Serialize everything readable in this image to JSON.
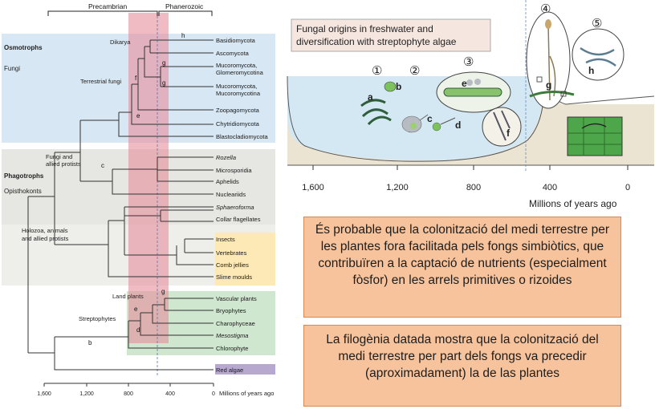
{
  "tree": {
    "era_precambrian": "Precambrian",
    "era_phanerozoic": "Phanerozoic",
    "group_osmotrophs": "Osmotrophs",
    "group_fungi": "Fungi",
    "group_phagotrophs": "Phagotrophs",
    "group_opisthokonts": "Opisthokonts",
    "clade_dikarya": "Dikarya",
    "clade_terrestrial_fungi": "Terrestrial fungi",
    "clade_fungi_allied_1": "Fungi and",
    "clade_fungi_allied_2": "allied protists",
    "clade_holozoa_1": "Holozoa, animals",
    "clade_holozoa_2": "and allied protists",
    "clade_land_plants": "Land plants",
    "clade_streptophytes": "Streptophytes",
    "markers": {
      "h": "h",
      "g1": "g",
      "g2": "g",
      "f": "f",
      "e1": "e",
      "c": "c",
      "g3": "g",
      "e2": "e",
      "d": "d",
      "b": "b"
    },
    "taxa": {
      "basidiomycota": "Basidiomycota",
      "ascomycota": "Ascomycota",
      "mucoromycota_glomero_1": "Mucoromycota,",
      "mucoromycota_glomero_2": "Glomeromycotina",
      "mucoromycota_mucoro_1": "Mucoromycota,",
      "mucoromycota_mucoro_2": "Mucoromycotina",
      "zoopagomycota": "Zoopagomycota",
      "chytridiomycota": "Chytridiomycota",
      "blastocladiomycota": "Blastocladiomycota",
      "rozella": "Rozella",
      "microsporidia": "Microsporidia",
      "aphelids": "Aphelids",
      "nucleariids": "Nucleariids",
      "sphaeroforma": "Sphaeroforma",
      "collar_flagellates": "Collar flagellates",
      "insects": "Insects",
      "vertebrates": "Vertebrates",
      "comb_jellies": "Comb jellies",
      "slime_moulds": "Slime moulds",
      "vascular_plants": "Vascular plants",
      "bryophytes": "Bryophytes",
      "charophyceae": "Charophyceae",
      "mesostigma": "Mesostigma",
      "chlorophyte": "Chlorophyte",
      "red_algae": "Red algae"
    },
    "axis_ticks": [
      "1,600",
      "1,200",
      "800",
      "400",
      "0"
    ],
    "axis_label": "Millions of years ago"
  },
  "scene": {
    "title_line1": "Fungal origins in freshwater and",
    "title_line2": "diversification with streptophyte algae",
    "circle_numbers": [
      "①",
      "②",
      "③",
      "④",
      "⑤"
    ],
    "letters": {
      "a": "a",
      "b": "b",
      "c": "c",
      "d": "d",
      "e": "e",
      "f": "f",
      "g": "g",
      "h": "h"
    },
    "axis_ticks": [
      "1,600",
      "1,200",
      "800",
      "400",
      "0"
    ],
    "axis_label": "Millions of years ago"
  },
  "text_box_1": "És probable que la colonització del medi terrestre per les plantes fora facilitada pels fongs simbiòtics, que contribuïren a la captació de nutrients (especialment fòsfor) en les arrels primitives o rizoides",
  "text_box_2": "La filogènia datada mostra que la colonització del medi terrestre per part dels fongs va precedir (aproximadament) la de las plantes",
  "colors": {
    "osmotroph_bg": "#d7e7f3",
    "phagotroph_bg": "#e6e6e2",
    "animal_bg": "#fde9b5",
    "plant_bg": "#cfe6cf",
    "red_algae_bg": "#b7a8d0",
    "precambrian_band": "#e88e9c",
    "box_fill": "#f6c39c",
    "water": "#d4e8f4"
  }
}
